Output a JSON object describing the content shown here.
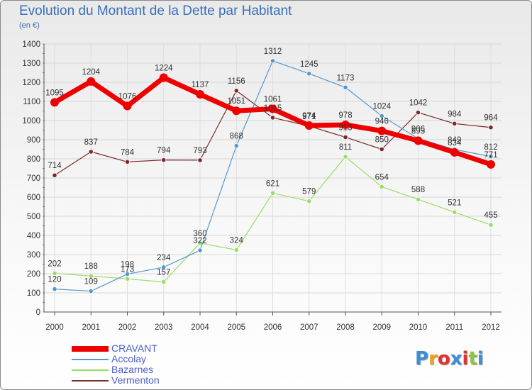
{
  "title": "Evolution du Montant de la Dette par Habitant",
  "subtitle": "(en €)",
  "logo_text": "Proxiti",
  "colors": {
    "title": "#3a6fb8",
    "legend_text": "#4a5ec9",
    "logo_letters": [
      "#3a8fd8",
      "#f0a020",
      "#e03030",
      "#3a8fd8",
      "#e03030",
      "#8cc63f",
      "#3a8fd8"
    ]
  },
  "chart_data": {
    "type": "line",
    "title": "Evolution du Montant de la Dette par Habitant",
    "ylabel": "(en €)",
    "xlabel": "",
    "x": [
      "2000",
      "2001",
      "2002",
      "2003",
      "2004",
      "2005",
      "2006",
      "2007",
      "2008",
      "2009",
      "2010",
      "2011",
      "2012"
    ],
    "ylim": [
      0,
      1400
    ],
    "yticks": [
      0,
      100,
      200,
      300,
      400,
      500,
      600,
      700,
      800,
      900,
      1000,
      1100,
      1200,
      1300,
      1400
    ],
    "grid": true,
    "legend_position": "bottom-left",
    "series": [
      {
        "name": "CRAVANT",
        "color": "#ee0000",
        "values": [
          1095,
          1204,
          1076,
          1224,
          1137,
          1051,
          1061,
          974,
          978,
          946,
          895,
          834,
          771
        ]
      },
      {
        "name": "Accolay",
        "color": "#5599cc",
        "values": [
          120,
          109,
          198,
          234,
          322,
          868,
          1312,
          1245,
          1173,
          1024,
          906,
          849,
          812
        ]
      },
      {
        "name": "Bazarnes",
        "color": "#99dd66",
        "values": [
          202,
          188,
          173,
          157,
          360,
          324,
          621,
          579,
          811,
          654,
          588,
          521,
          455
        ]
      },
      {
        "name": "Vermenton",
        "color": "#7a2a2a",
        "values": [
          714,
          837,
          784,
          794,
          793,
          1156,
          1015,
          971,
          913,
          850,
          1042,
          984,
          964
        ]
      }
    ]
  }
}
